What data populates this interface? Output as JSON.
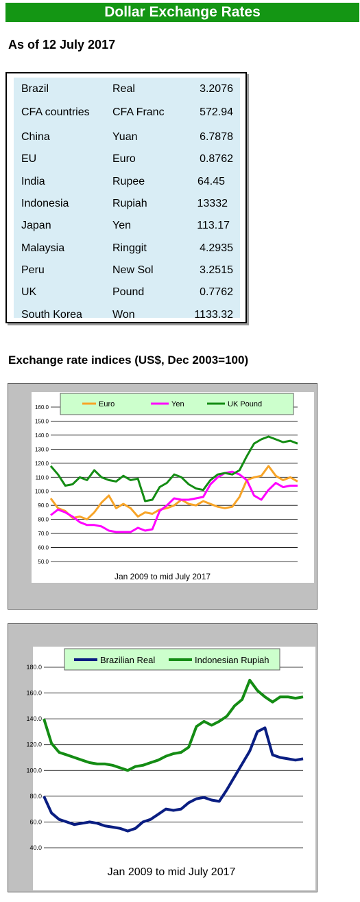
{
  "header": {
    "title": "Dollar Exchange Rates",
    "date_line": "As of 12 July 2017"
  },
  "rates_table": {
    "rows": [
      {
        "country": "Brazil",
        "currency": "Real",
        "rate": "3.2076"
      },
      {
        "country": "CFA countries",
        "currency": "CFA Franc",
        "rate": "572.94"
      },
      {
        "country": "China",
        "currency": "Yuan",
        "rate": "6.7878"
      },
      {
        "country": "EU",
        "currency": "Euro",
        "rate": "0.8762"
      },
      {
        "country": "India",
        "currency": "Rupee",
        "rate": "64.45"
      },
      {
        "country": "Indonesia",
        "currency": "Rupiah",
        "rate": "13332"
      },
      {
        "country": "Japan",
        "currency": "Yen",
        "rate": "113.17"
      },
      {
        "country": "Malaysia",
        "currency": "Ringgit",
        "rate": "4.2935"
      },
      {
        "country": "Peru",
        "currency": "New Sol",
        "rate": "3.2515"
      },
      {
        "country": "UK",
        "currency": "Pound",
        "rate": "0.7762"
      },
      {
        "country": "South Korea",
        "currency": "Won",
        "rate": "1133.32"
      }
    ]
  },
  "indices_section": {
    "title": "Exchange rate indices (US$, Dec 2003=100)"
  },
  "chart_data": [
    {
      "type": "line",
      "title": "",
      "xlabel": "Jan 2009  to mid July 2017",
      "ylabel": "",
      "ylim": [
        50,
        160
      ],
      "yticks": [
        "50.0",
        "60.0",
        "70.0",
        "80.0",
        "90.0",
        "100.0",
        "110.0",
        "120.0",
        "130.0",
        "140.0",
        "150.0",
        "160.0"
      ],
      "grid": true,
      "legend_position": "top",
      "x": [
        2009.0,
        2009.25,
        2009.5,
        2009.75,
        2010.0,
        2010.25,
        2010.5,
        2010.75,
        2011.0,
        2011.25,
        2011.5,
        2011.75,
        2012.0,
        2012.25,
        2012.5,
        2012.75,
        2013.0,
        2013.25,
        2013.5,
        2013.75,
        2014.0,
        2014.25,
        2014.5,
        2014.75,
        2015.0,
        2015.25,
        2015.5,
        2015.75,
        2016.0,
        2016.25,
        2016.5,
        2016.75,
        2017.0,
        2017.25,
        2017.5
      ],
      "series": [
        {
          "name": "Euro",
          "color": "#f7a428",
          "values": [
            95,
            88,
            86,
            81,
            82,
            80,
            85,
            92,
            97,
            88,
            91,
            88,
            82,
            85,
            84,
            87,
            88,
            90,
            94,
            91,
            90,
            93,
            91,
            89,
            88,
            89,
            96,
            108,
            110,
            111,
            118,
            111,
            108,
            110,
            107
          ]
        },
        {
          "name": "Yen",
          "color": "#ff00ff",
          "values": [
            83,
            87,
            85,
            82,
            78,
            76,
            76,
            75,
            72,
            71,
            71,
            71,
            74,
            72,
            73,
            86,
            90,
            95,
            94,
            94,
            95,
            96,
            105,
            110,
            113,
            114,
            112,
            108,
            97,
            94,
            101,
            106,
            103,
            104,
            104
          ]
        },
        {
          "name": "UK Pound",
          "color": "#148c14",
          "values": [
            118,
            112,
            104,
            105,
            110,
            108,
            115,
            110,
            108,
            107,
            111,
            108,
            109,
            93,
            94,
            103,
            106,
            112,
            110,
            105,
            102,
            101,
            108,
            112,
            113,
            112,
            115,
            125,
            134,
            137,
            139,
            137,
            135,
            136,
            134
          ]
        }
      ]
    },
    {
      "type": "line",
      "title": "",
      "xlabel": "Jan 2009 to mid July 2017",
      "ylabel": "",
      "ylim": [
        40,
        180
      ],
      "yticks": [
        "40.0",
        "60.0",
        "80.0",
        "100.0",
        "120.0",
        "140.0",
        "160.0",
        "180.0"
      ],
      "grid": true,
      "legend_position": "top",
      "x": [
        2009.0,
        2009.25,
        2009.5,
        2009.75,
        2010.0,
        2010.25,
        2010.5,
        2010.75,
        2011.0,
        2011.25,
        2011.5,
        2011.75,
        2012.0,
        2012.25,
        2012.5,
        2012.75,
        2013.0,
        2013.25,
        2013.5,
        2013.75,
        2014.0,
        2014.25,
        2014.5,
        2014.75,
        2015.0,
        2015.25,
        2015.5,
        2015.75,
        2016.0,
        2016.25,
        2016.5,
        2016.75,
        2017.0,
        2017.25,
        2017.5
      ],
      "series": [
        {
          "name": "Brazilian Real",
          "color": "#0a1e82",
          "values": [
            80,
            67,
            62,
            60,
            58,
            59,
            60,
            59,
            57,
            56,
            55,
            53,
            55,
            60,
            62,
            66,
            70,
            69,
            70,
            75,
            78,
            79,
            77,
            76,
            85,
            95,
            105,
            115,
            130,
            133,
            112,
            110,
            109,
            108,
            109
          ]
        },
        {
          "name": "Indonesian Rupiah",
          "color": "#148c14",
          "values": [
            140,
            121,
            114,
            112,
            110,
            108,
            106,
            105,
            105,
            104,
            102,
            100,
            103,
            104,
            106,
            108,
            111,
            113,
            114,
            118,
            134,
            138,
            135,
            138,
            142,
            150,
            155,
            170,
            162,
            157,
            153,
            157,
            157,
            156,
            157
          ]
        }
      ]
    }
  ]
}
